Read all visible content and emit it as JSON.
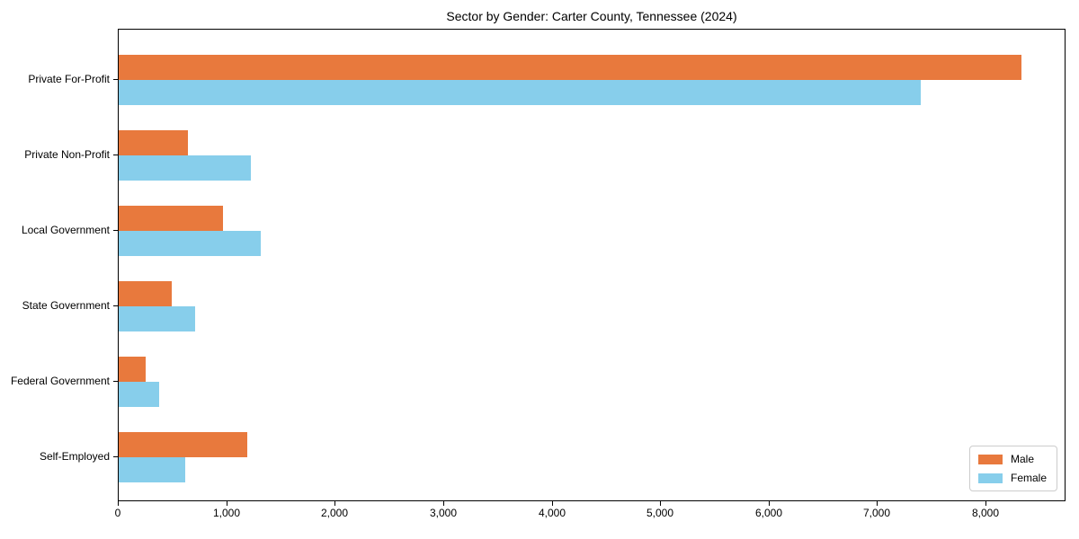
{
  "title": "Sector by Gender: Carter County, Tennessee (2024)",
  "colors": {
    "male": "#e8793d",
    "female": "#87ceeb",
    "axis": "#000000",
    "background": "#ffffff",
    "legend_border": "#cccccc"
  },
  "legend": {
    "position": "lower right",
    "items": [
      {
        "label": "Male",
        "color": "#e8793d"
      },
      {
        "label": "Female",
        "color": "#87ceeb"
      }
    ]
  },
  "chart_data": {
    "type": "bar",
    "orientation": "horizontal",
    "title": "Sector by Gender: Carter County, Tennessee (2024)",
    "xlabel": "",
    "ylabel": "",
    "grid": false,
    "legend_position": "lower right",
    "categories": [
      "Private For-Profit",
      "Private Non-Profit",
      "Local Government",
      "State Government",
      "Federal Government",
      "Self-Employed"
    ],
    "series": [
      {
        "name": "Male",
        "color": "#e8793d",
        "values": [
          8320,
          635,
          965,
          490,
          250,
          1185
        ]
      },
      {
        "name": "Female",
        "color": "#87ceeb",
        "values": [
          7390,
          1215,
          1310,
          705,
          375,
          615
        ]
      }
    ],
    "xlim": [
      0,
      8720
    ],
    "xticks": [
      0,
      1000,
      2000,
      3000,
      4000,
      5000,
      6000,
      7000,
      8000
    ],
    "xtick_labels": [
      "0",
      "1,000",
      "2,000",
      "3,000",
      "4,000",
      "5,000",
      "6,000",
      "7,000",
      "8,000"
    ]
  }
}
